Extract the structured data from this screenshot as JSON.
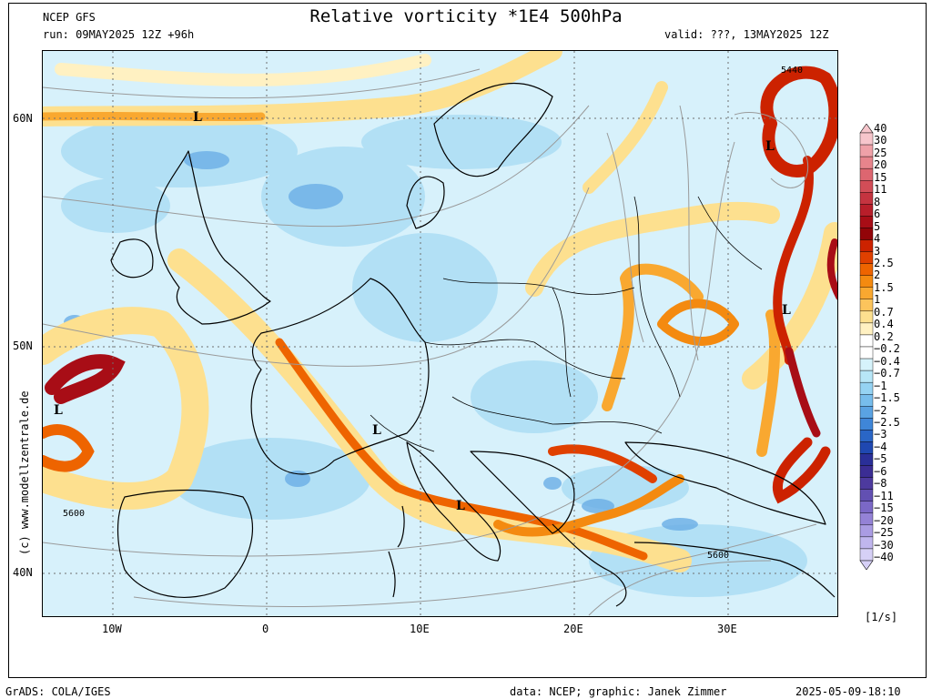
{
  "header": {
    "source": "NCEP GFS",
    "run": "run: 09MAY2025 12Z +96h",
    "title": "Relative vorticity *1E4 500hPa",
    "valid": "valid: ???, 13MAY2025 12Z"
  },
  "map": {
    "lat_labels": [
      "60N",
      "50N",
      "40N"
    ],
    "lon_labels": [
      "10W",
      "0",
      "10E",
      "20E",
      "30E"
    ],
    "lows": [
      "L",
      "L",
      "L",
      "L",
      "L",
      "L"
    ],
    "contour_labels": [
      "5440",
      "5600",
      "5600"
    ]
  },
  "watermark": "(c) www.modellzentrale.de",
  "colorbar": {
    "labels": [
      "40",
      "30",
      "25",
      "20",
      "15",
      "11",
      "8",
      "6",
      "5",
      "4",
      "3",
      "2.5",
      "2",
      "1.5",
      "1",
      "0.7",
      "0.4",
      "0.2",
      "−0.2",
      "−0.4",
      "−0.7",
      "−1",
      "−1.5",
      "−2",
      "−2.5",
      "−3",
      "−4",
      "−5",
      "−6",
      "−8",
      "−11",
      "−15",
      "−20",
      "−25",
      "−30",
      "−40"
    ],
    "colors": [
      "#f7c6cc",
      "#efa1a8",
      "#e7848c",
      "#dd6670",
      "#d24d57",
      "#c53440",
      "#b81e2a",
      "#a80d16",
      "#920408",
      "#cc2200",
      "#e04000",
      "#ee6400",
      "#f48a10",
      "#f9a830",
      "#fcc45c",
      "#fde08f",
      "#fff1c2",
      "#ffffff",
      "#ffffff",
      "#d6f3fb",
      "#b7e6f7",
      "#95d3f3",
      "#77bdec",
      "#5aa3e3",
      "#3f86d8",
      "#2a66c6",
      "#1f48b1",
      "#2a2f98",
      "#3b2d94",
      "#4d3a9e",
      "#6250b2",
      "#7b68c6",
      "#9482d6",
      "#aa9ce3",
      "#c0b6ee",
      "#d6d0f6"
    ],
    "units": "[1/s]"
  },
  "footer": {
    "left": "GrADS: COLA/IGES",
    "center": "data: NCEP; graphic: Janek Zimmer",
    "right": "2025-05-09-18:10"
  }
}
